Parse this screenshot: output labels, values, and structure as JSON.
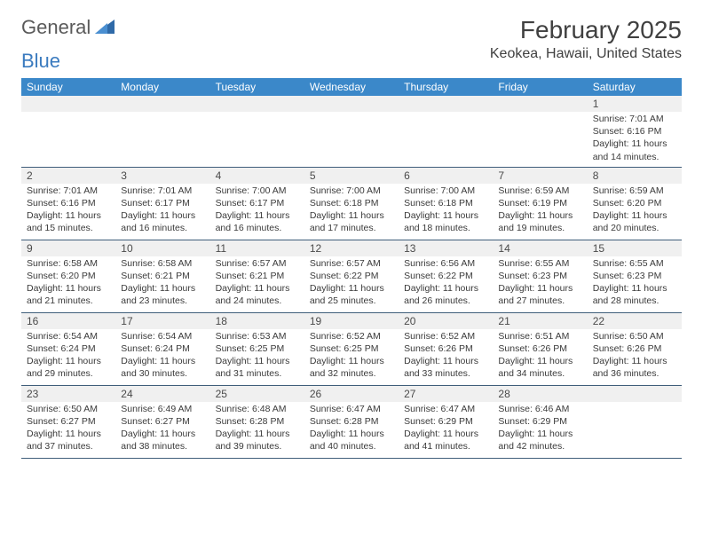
{
  "logo": {
    "word1": "General",
    "word2": "Blue"
  },
  "title": "February 2025",
  "location": "Keokea, Hawaii, United States",
  "weekday_header_bg": "#3b88c9",
  "weekdays": [
    "Sunday",
    "Monday",
    "Tuesday",
    "Wednesday",
    "Thursday",
    "Friday",
    "Saturday"
  ],
  "weeks": [
    [
      {
        "n": "",
        "sunrise": "",
        "sunset": "",
        "daylight": ""
      },
      {
        "n": "",
        "sunrise": "",
        "sunset": "",
        "daylight": ""
      },
      {
        "n": "",
        "sunrise": "",
        "sunset": "",
        "daylight": ""
      },
      {
        "n": "",
        "sunrise": "",
        "sunset": "",
        "daylight": ""
      },
      {
        "n": "",
        "sunrise": "",
        "sunset": "",
        "daylight": ""
      },
      {
        "n": "",
        "sunrise": "",
        "sunset": "",
        "daylight": ""
      },
      {
        "n": "1",
        "sunrise": "Sunrise: 7:01 AM",
        "sunset": "Sunset: 6:16 PM",
        "daylight": "Daylight: 11 hours and 14 minutes."
      }
    ],
    [
      {
        "n": "2",
        "sunrise": "Sunrise: 7:01 AM",
        "sunset": "Sunset: 6:16 PM",
        "daylight": "Daylight: 11 hours and 15 minutes."
      },
      {
        "n": "3",
        "sunrise": "Sunrise: 7:01 AM",
        "sunset": "Sunset: 6:17 PM",
        "daylight": "Daylight: 11 hours and 16 minutes."
      },
      {
        "n": "4",
        "sunrise": "Sunrise: 7:00 AM",
        "sunset": "Sunset: 6:17 PM",
        "daylight": "Daylight: 11 hours and 16 minutes."
      },
      {
        "n": "5",
        "sunrise": "Sunrise: 7:00 AM",
        "sunset": "Sunset: 6:18 PM",
        "daylight": "Daylight: 11 hours and 17 minutes."
      },
      {
        "n": "6",
        "sunrise": "Sunrise: 7:00 AM",
        "sunset": "Sunset: 6:18 PM",
        "daylight": "Daylight: 11 hours and 18 minutes."
      },
      {
        "n": "7",
        "sunrise": "Sunrise: 6:59 AM",
        "sunset": "Sunset: 6:19 PM",
        "daylight": "Daylight: 11 hours and 19 minutes."
      },
      {
        "n": "8",
        "sunrise": "Sunrise: 6:59 AM",
        "sunset": "Sunset: 6:20 PM",
        "daylight": "Daylight: 11 hours and 20 minutes."
      }
    ],
    [
      {
        "n": "9",
        "sunrise": "Sunrise: 6:58 AM",
        "sunset": "Sunset: 6:20 PM",
        "daylight": "Daylight: 11 hours and 21 minutes."
      },
      {
        "n": "10",
        "sunrise": "Sunrise: 6:58 AM",
        "sunset": "Sunset: 6:21 PM",
        "daylight": "Daylight: 11 hours and 23 minutes."
      },
      {
        "n": "11",
        "sunrise": "Sunrise: 6:57 AM",
        "sunset": "Sunset: 6:21 PM",
        "daylight": "Daylight: 11 hours and 24 minutes."
      },
      {
        "n": "12",
        "sunrise": "Sunrise: 6:57 AM",
        "sunset": "Sunset: 6:22 PM",
        "daylight": "Daylight: 11 hours and 25 minutes."
      },
      {
        "n": "13",
        "sunrise": "Sunrise: 6:56 AM",
        "sunset": "Sunset: 6:22 PM",
        "daylight": "Daylight: 11 hours and 26 minutes."
      },
      {
        "n": "14",
        "sunrise": "Sunrise: 6:55 AM",
        "sunset": "Sunset: 6:23 PM",
        "daylight": "Daylight: 11 hours and 27 minutes."
      },
      {
        "n": "15",
        "sunrise": "Sunrise: 6:55 AM",
        "sunset": "Sunset: 6:23 PM",
        "daylight": "Daylight: 11 hours and 28 minutes."
      }
    ],
    [
      {
        "n": "16",
        "sunrise": "Sunrise: 6:54 AM",
        "sunset": "Sunset: 6:24 PM",
        "daylight": "Daylight: 11 hours and 29 minutes."
      },
      {
        "n": "17",
        "sunrise": "Sunrise: 6:54 AM",
        "sunset": "Sunset: 6:24 PM",
        "daylight": "Daylight: 11 hours and 30 minutes."
      },
      {
        "n": "18",
        "sunrise": "Sunrise: 6:53 AM",
        "sunset": "Sunset: 6:25 PM",
        "daylight": "Daylight: 11 hours and 31 minutes."
      },
      {
        "n": "19",
        "sunrise": "Sunrise: 6:52 AM",
        "sunset": "Sunset: 6:25 PM",
        "daylight": "Daylight: 11 hours and 32 minutes."
      },
      {
        "n": "20",
        "sunrise": "Sunrise: 6:52 AM",
        "sunset": "Sunset: 6:26 PM",
        "daylight": "Daylight: 11 hours and 33 minutes."
      },
      {
        "n": "21",
        "sunrise": "Sunrise: 6:51 AM",
        "sunset": "Sunset: 6:26 PM",
        "daylight": "Daylight: 11 hours and 34 minutes."
      },
      {
        "n": "22",
        "sunrise": "Sunrise: 6:50 AM",
        "sunset": "Sunset: 6:26 PM",
        "daylight": "Daylight: 11 hours and 36 minutes."
      }
    ],
    [
      {
        "n": "23",
        "sunrise": "Sunrise: 6:50 AM",
        "sunset": "Sunset: 6:27 PM",
        "daylight": "Daylight: 11 hours and 37 minutes."
      },
      {
        "n": "24",
        "sunrise": "Sunrise: 6:49 AM",
        "sunset": "Sunset: 6:27 PM",
        "daylight": "Daylight: 11 hours and 38 minutes."
      },
      {
        "n": "25",
        "sunrise": "Sunrise: 6:48 AM",
        "sunset": "Sunset: 6:28 PM",
        "daylight": "Daylight: 11 hours and 39 minutes."
      },
      {
        "n": "26",
        "sunrise": "Sunrise: 6:47 AM",
        "sunset": "Sunset: 6:28 PM",
        "daylight": "Daylight: 11 hours and 40 minutes."
      },
      {
        "n": "27",
        "sunrise": "Sunrise: 6:47 AM",
        "sunset": "Sunset: 6:29 PM",
        "daylight": "Daylight: 11 hours and 41 minutes."
      },
      {
        "n": "28",
        "sunrise": "Sunrise: 6:46 AM",
        "sunset": "Sunset: 6:29 PM",
        "daylight": "Daylight: 11 hours and 42 minutes."
      },
      {
        "n": "",
        "sunrise": "",
        "sunset": "",
        "daylight": ""
      }
    ]
  ]
}
